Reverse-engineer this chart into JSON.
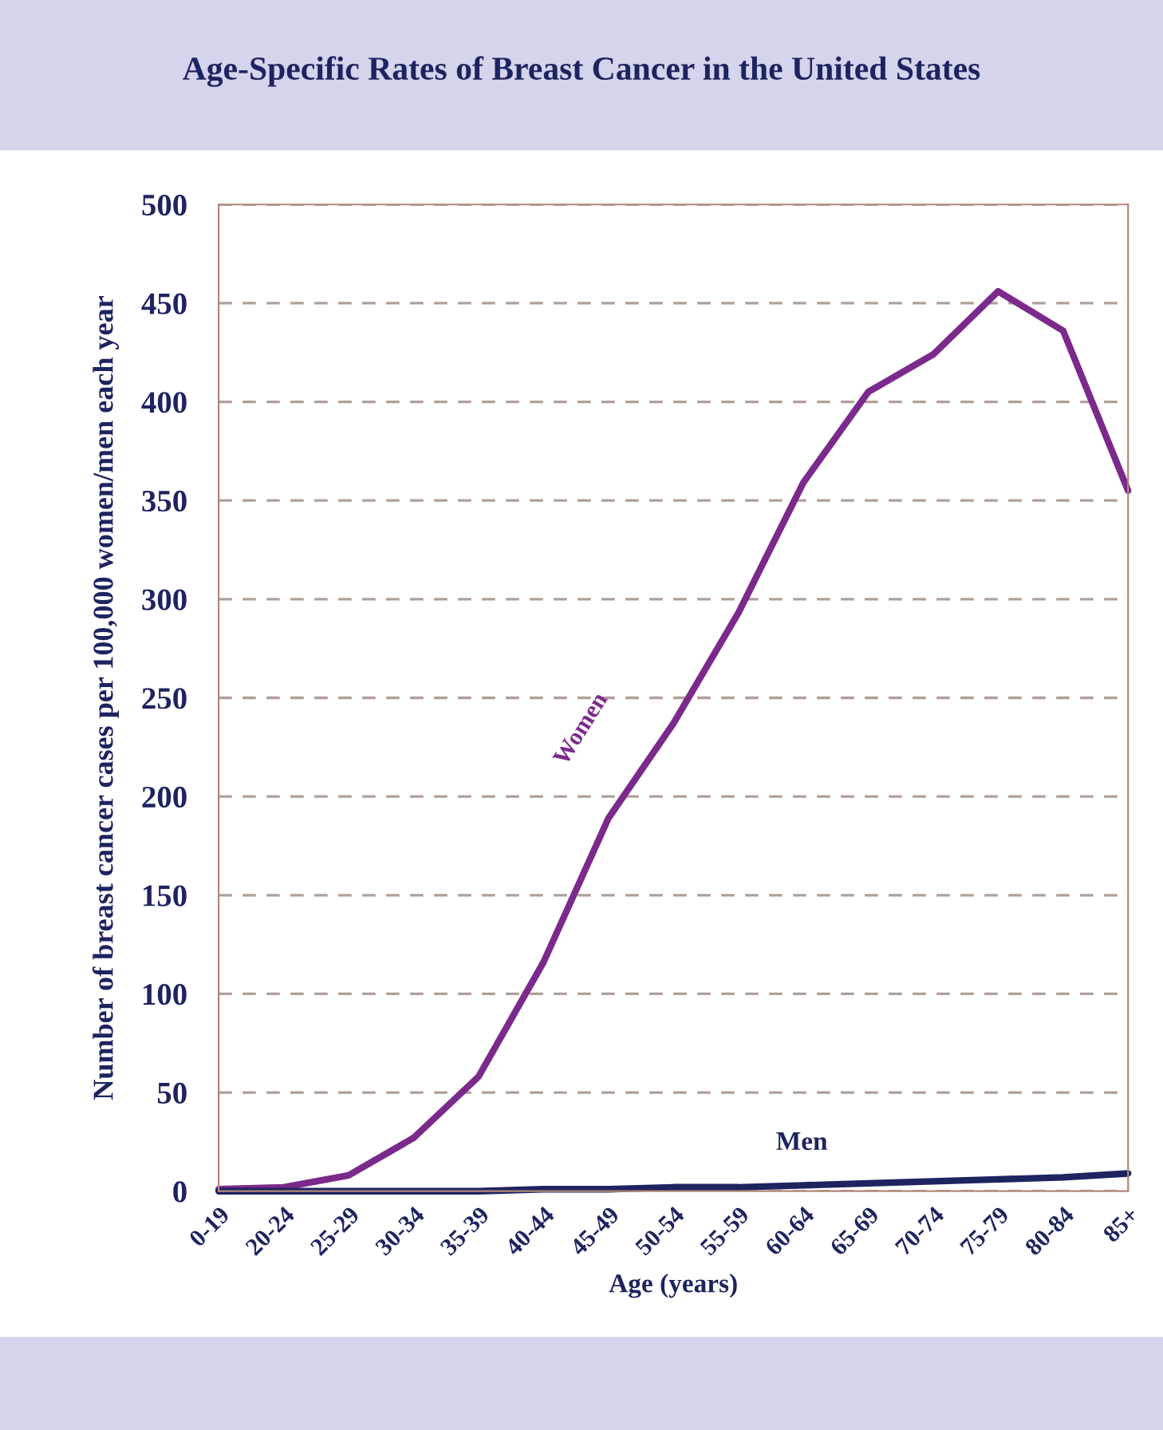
{
  "chart_data": {
    "type": "line",
    "title": "Age-Specific Rates of Breast Cancer in the United States",
    "xlabel": "Age (years)",
    "ylabel": "Number of breast cancer cases per 100,000 women/men each year",
    "categories": [
      "0-19",
      "20-24",
      "25-29",
      "30-34",
      "35-39",
      "40-44",
      "45-49",
      "50-54",
      "55-59",
      "60-64",
      "65-69",
      "70-74",
      "75-79",
      "80-84",
      "85+"
    ],
    "series": [
      {
        "name": "Women",
        "color": "#7b2a8c",
        "values": [
          1,
          2,
          8,
          27,
          58,
          116,
          189,
          237,
          293,
          359,
          405,
          424,
          456,
          436,
          355
        ]
      },
      {
        "name": "Men",
        "color": "#1e2460",
        "values": [
          0,
          0,
          0,
          0,
          0,
          1,
          1,
          2,
          2,
          3,
          4,
          5,
          6,
          7,
          9
        ]
      }
    ],
    "ylim": [
      0,
      500
    ],
    "yticks": [
      0,
      50,
      100,
      150,
      200,
      250,
      300,
      350,
      400,
      450,
      500
    ],
    "grid": "y",
    "line_style": "solid",
    "marker": "none",
    "legend": false
  }
}
